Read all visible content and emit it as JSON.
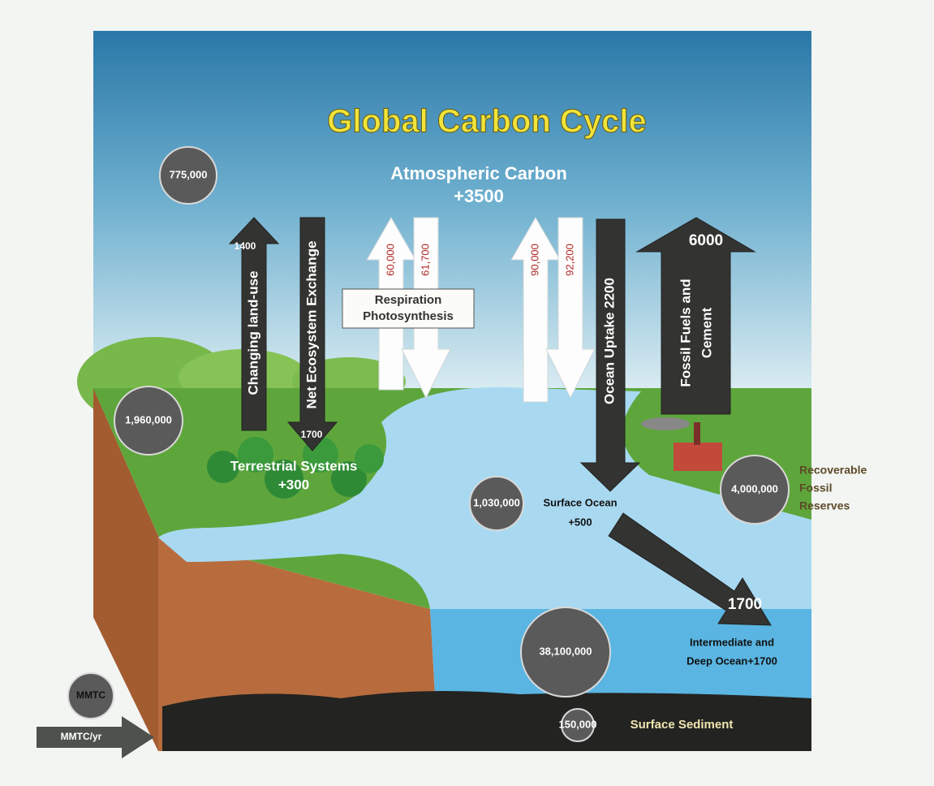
{
  "title": "Global Carbon Cycle",
  "atmosphere": {
    "label": "Atmospheric Carbon",
    "change": "+3500"
  },
  "pools": {
    "atmosphere_vegetation": "775,000",
    "soil": "1,960,000",
    "surface_ocean": "1,030,000",
    "fossil": "4,000,000",
    "deep_ocean": "38,100,000",
    "sediment": "150,000"
  },
  "fluxes": {
    "land_use": {
      "label": "Changing land-use",
      "value": "1400"
    },
    "net_ecosystem": {
      "label": "Net Ecosystem Exchange",
      "value": "1700"
    },
    "land_respiration": "60,000",
    "land_photosynthesis": "61,700",
    "process_box": [
      "Respiration",
      "Photosynthesis"
    ],
    "ocean_out": "90,000",
    "ocean_in": "92,200",
    "ocean_uptake": "Ocean Uptake 2200",
    "fossil": {
      "value": "6000",
      "label": [
        "Fossil Fuels and",
        "Cement"
      ]
    },
    "deep": "1700"
  },
  "regions": {
    "terrestrial": [
      "Terrestrial Systems",
      "+300"
    ],
    "surface_ocean": [
      "Surface Ocean",
      "+500"
    ],
    "reserves": [
      "Recoverable",
      "Fossil",
      "Reserves"
    ],
    "deep_ocean": [
      "Intermediate and",
      "Deep Ocean+1700"
    ],
    "sediment": "Surface Sediment"
  },
  "legend": {
    "pool": "MMTC",
    "flux": "MMTC/yr"
  }
}
